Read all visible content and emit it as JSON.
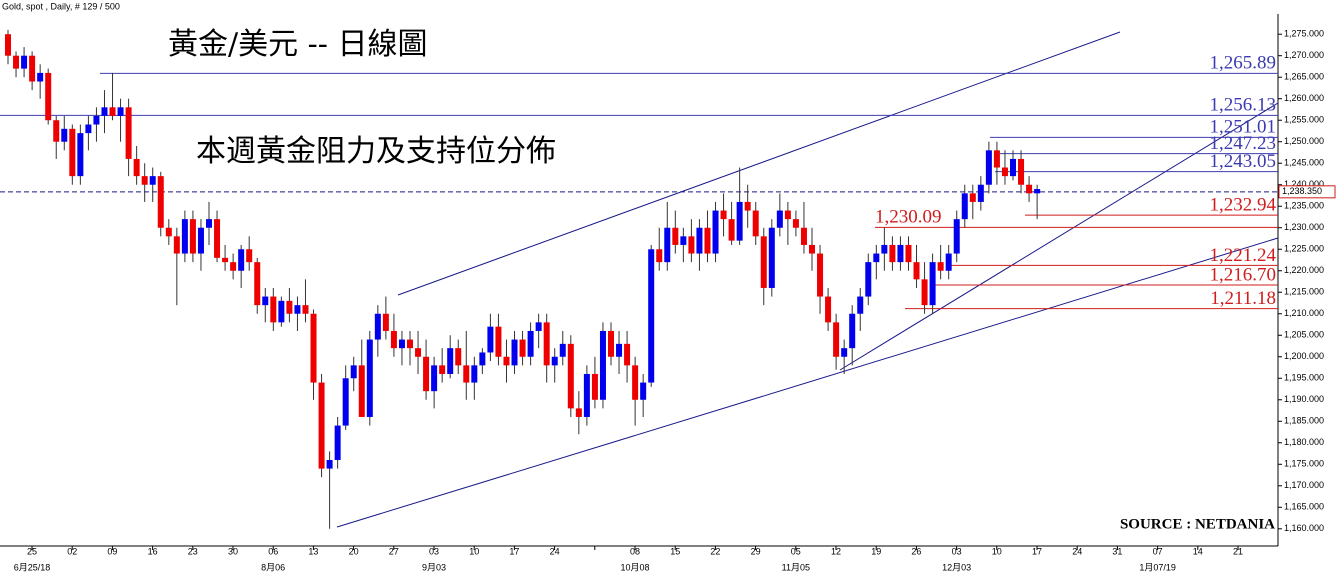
{
  "header": "Gold, spot , Daily, # 129 / 500",
  "chart_data": {
    "type": "candlestick",
    "title": "黃金/美元 -- 日線圖",
    "subtitle": "本週黃金阻力及支持位分佈",
    "source": "SOURCE : NETDANIA",
    "up_color": "#0000ee",
    "down_color": "#ee0000",
    "ohlc": [
      [
        1275,
        1276,
        1268,
        1270
      ],
      [
        1270,
        1271,
        1265,
        1267
      ],
      [
        1267,
        1272,
        1265,
        1270
      ],
      [
        1270,
        1271,
        1262,
        1264
      ],
      [
        1264,
        1268,
        1260,
        1266
      ],
      [
        1266,
        1267,
        1254,
        1255
      ],
      [
        1255,
        1256,
        1246,
        1250
      ],
      [
        1250,
        1256,
        1248,
        1253
      ],
      [
        1253,
        1254,
        1240,
        1242
      ],
      [
        1242,
        1254,
        1240,
        1252
      ],
      [
        1252,
        1256,
        1248,
        1254
      ],
      [
        1254,
        1258,
        1250,
        1256
      ],
      [
        1256,
        1262,
        1252,
        1258
      ],
      [
        1258,
        1266,
        1255,
        1256
      ],
      [
        1256,
        1260,
        1250,
        1258
      ],
      [
        1258,
        1260,
        1242,
        1246
      ],
      [
        1246,
        1249,
        1240,
        1242
      ],
      [
        1242,
        1245,
        1236,
        1240
      ],
      [
        1240,
        1244,
        1236,
        1242
      ],
      [
        1242,
        1243,
        1228,
        1230
      ],
      [
        1230,
        1232,
        1226,
        1228
      ],
      [
        1228,
        1230,
        1212,
        1224
      ],
      [
        1224,
        1234,
        1222,
        1232
      ],
      [
        1232,
        1234,
        1222,
        1224
      ],
      [
        1224,
        1232,
        1220,
        1230
      ],
      [
        1230,
        1236,
        1226,
        1232
      ],
      [
        1232,
        1234,
        1222,
        1223
      ],
      [
        1223,
        1226,
        1220,
        1222
      ],
      [
        1222,
        1224,
        1218,
        1220
      ],
      [
        1220,
        1226,
        1216,
        1225
      ],
      [
        1225,
        1228,
        1220,
        1222
      ],
      [
        1222,
        1223,
        1210,
        1212
      ],
      [
        1212,
        1216,
        1208,
        1214
      ],
      [
        1214,
        1216,
        1206,
        1208
      ],
      [
        1208,
        1214,
        1207,
        1213
      ],
      [
        1213,
        1216,
        1208,
        1210
      ],
      [
        1210,
        1214,
        1206,
        1212
      ],
      [
        1212,
        1218,
        1208,
        1210
      ],
      [
        1210,
        1211,
        1190,
        1194
      ],
      [
        1194,
        1196,
        1172,
        1174
      ],
      [
        1174,
        1178,
        1160,
        1176
      ],
      [
        1176,
        1186,
        1174,
        1184
      ],
      [
        1184,
        1198,
        1183,
        1195
      ],
      [
        1195,
        1200,
        1192,
        1198
      ],
      [
        1198,
        1204,
        1186,
        1186
      ],
      [
        1186,
        1206,
        1184,
        1204
      ],
      [
        1204,
        1212,
        1200,
        1210
      ],
      [
        1210,
        1214,
        1204,
        1206
      ],
      [
        1206,
        1210,
        1200,
        1202
      ],
      [
        1202,
        1206,
        1198,
        1204
      ],
      [
        1204,
        1206,
        1198,
        1202
      ],
      [
        1202,
        1206,
        1196,
        1200
      ],
      [
        1200,
        1204,
        1190,
        1192
      ],
      [
        1192,
        1200,
        1188,
        1198
      ],
      [
        1198,
        1202,
        1194,
        1196
      ],
      [
        1196,
        1205,
        1195,
        1202
      ],
      [
        1202,
        1204,
        1196,
        1198
      ],
      [
        1198,
        1206,
        1190,
        1194
      ],
      [
        1194,
        1200,
        1190,
        1198
      ],
      [
        1198,
        1202,
        1196,
        1201
      ],
      [
        1201,
        1210,
        1199,
        1207
      ],
      [
        1207,
        1210,
        1198,
        1200
      ],
      [
        1200,
        1204,
        1194,
        1198
      ],
      [
        1198,
        1206,
        1196,
        1204
      ],
      [
        1204,
        1206,
        1198,
        1200
      ],
      [
        1200,
        1208,
        1198,
        1206
      ],
      [
        1206,
        1210,
        1202,
        1208
      ],
      [
        1208,
        1210,
        1194,
        1198
      ],
      [
        1198,
        1202,
        1194,
        1200
      ],
      [
        1200,
        1206,
        1198,
        1203
      ],
      [
        1203,
        1205,
        1186,
        1188
      ],
      [
        1188,
        1192,
        1182,
        1186
      ],
      [
        1186,
        1198,
        1184,
        1196
      ],
      [
        1196,
        1200,
        1188,
        1190
      ],
      [
        1190,
        1208,
        1188,
        1206
      ],
      [
        1206,
        1208,
        1198,
        1200
      ],
      [
        1200,
        1206,
        1196,
        1203
      ],
      [
        1203,
        1206,
        1194,
        1198
      ],
      [
        1198,
        1200,
        1184,
        1190
      ],
      [
        1190,
        1196,
        1186,
        1194
      ],
      [
        1194,
        1226,
        1193,
        1225
      ],
      [
        1225,
        1230,
        1220,
        1222
      ],
      [
        1222,
        1236,
        1220,
        1230
      ],
      [
        1230,
        1234,
        1224,
        1226
      ],
      [
        1226,
        1230,
        1222,
        1228
      ],
      [
        1228,
        1232,
        1222,
        1224
      ],
      [
        1224,
        1232,
        1220,
        1230
      ],
      [
        1230,
        1234,
        1222,
        1224
      ],
      [
        1224,
        1236,
        1222,
        1234
      ],
      [
        1234,
        1238,
        1228,
        1232
      ],
      [
        1232,
        1236,
        1226,
        1227
      ],
      [
        1227,
        1244,
        1226,
        1236
      ],
      [
        1236,
        1240,
        1230,
        1234
      ],
      [
        1234,
        1236,
        1226,
        1228
      ],
      [
        1228,
        1230,
        1212,
        1216
      ],
      [
        1216,
        1232,
        1214,
        1230
      ],
      [
        1230,
        1238,
        1228,
        1234
      ],
      [
        1234,
        1236,
        1226,
        1232
      ],
      [
        1232,
        1234,
        1228,
        1230
      ],
      [
        1230,
        1236,
        1224,
        1226
      ],
      [
        1226,
        1230,
        1220,
        1224
      ],
      [
        1224,
        1226,
        1210,
        1214
      ],
      [
        1214,
        1216,
        1206,
        1208
      ],
      [
        1208,
        1210,
        1197,
        1200
      ],
      [
        1200,
        1204,
        1196,
        1202
      ],
      [
        1202,
        1212,
        1198,
        1210
      ],
      [
        1210,
        1216,
        1206,
        1214
      ],
      [
        1214,
        1224,
        1212,
        1222
      ],
      [
        1222,
        1226,
        1218,
        1224
      ],
      [
        1224,
        1230,
        1220,
        1226
      ],
      [
        1226,
        1228,
        1220,
        1222
      ],
      [
        1222,
        1228,
        1220,
        1226
      ],
      [
        1226,
        1228,
        1220,
        1222
      ],
      [
        1222,
        1226,
        1216,
        1218
      ],
      [
        1218,
        1222,
        1210,
        1212
      ],
      [
        1212,
        1224,
        1210,
        1222
      ],
      [
        1222,
        1226,
        1218,
        1220
      ],
      [
        1220,
        1226,
        1218,
        1224
      ],
      [
        1224,
        1234,
        1222,
        1232
      ],
      [
        1232,
        1240,
        1230,
        1238
      ],
      [
        1238,
        1240,
        1232,
        1236
      ],
      [
        1236,
        1242,
        1234,
        1240
      ],
      [
        1240,
        1250,
        1238,
        1248
      ],
      [
        1248,
        1250,
        1240,
        1244
      ],
      [
        1244,
        1248,
        1240,
        1242
      ],
      [
        1242,
        1248,
        1241,
        1246
      ],
      [
        1246,
        1248,
        1238,
        1240
      ],
      [
        1240,
        1242,
        1236,
        1238
      ],
      [
        1238,
        1240,
        1232,
        1239
      ]
    ],
    "levels": [
      {
        "value": 1265.89,
        "label": "1,265.89",
        "color": "#3b3bb0"
      },
      {
        "value": 1256.13,
        "label": "1,256.13",
        "color": "#3b3bb0"
      },
      {
        "value": 1251.01,
        "label": "1,251.01",
        "color": "#3b3bb0"
      },
      {
        "value": 1247.23,
        "label": "1,247.23",
        "color": "#3b3bb0"
      },
      {
        "value": 1243.05,
        "label": "1,243.05",
        "color": "#3b3bb0"
      },
      {
        "value": 1232.94,
        "label": "1,232.94",
        "color": "#d01c1c"
      },
      {
        "value": 1230.09,
        "label": "1,230.09",
        "color": "#d01c1c"
      },
      {
        "value": 1221.24,
        "label": "1,221.24",
        "color": "#d01c1c"
      },
      {
        "value": 1216.7,
        "label": "1,216.70",
        "color": "#d01c1c"
      },
      {
        "value": 1211.18,
        "label": "1,211.18",
        "color": "#d01c1c"
      }
    ],
    "last_price": {
      "value": 1238.35,
      "label": "1,238.350"
    },
    "categories": [
      "25",
      "02",
      "09",
      "16",
      "23",
      "30",
      "06",
      "13",
      "20",
      "27",
      "03",
      "10",
      "17",
      "24",
      null,
      "08",
      "15",
      "22",
      "29",
      "05",
      "12",
      "19",
      "26",
      "03",
      "10",
      "17",
      "24",
      "31",
      "07",
      "14",
      "21"
    ],
    "month_labels": [
      "6月25/18",
      null,
      null,
      null,
      null,
      null,
      "8月06",
      null,
      null,
      null,
      "9月03",
      null,
      null,
      null,
      null,
      "10月08",
      null,
      null,
      null,
      "11月05",
      null,
      null,
      null,
      "12月03",
      null,
      null,
      null,
      null,
      "1月07/19",
      null,
      null
    ],
    "ylim": [
      1156,
      1279
    ],
    "yticks": [
      {
        "value": 1160,
        "label": "1,160.000"
      },
      {
        "value": 1165,
        "label": "1,165.000"
      },
      {
        "value": 1170,
        "label": "1,170.000"
      },
      {
        "value": 1175,
        "label": "1,175.000"
      },
      {
        "value": 1180,
        "label": "1,180.000"
      },
      {
        "value": 1185,
        "label": "1,185.000"
      },
      {
        "value": 1190,
        "label": "1,190.000"
      },
      {
        "value": 1195,
        "label": "1,195.000"
      },
      {
        "value": 1200,
        "label": "1,200.000"
      },
      {
        "value": 1205,
        "label": "1,205.000"
      },
      {
        "value": 1210,
        "label": "1,210.000"
      },
      {
        "value": 1215,
        "label": "1,215.000"
      },
      {
        "value": 1220,
        "label": "1,220.000"
      },
      {
        "value": 1225,
        "label": "1,225.000"
      },
      {
        "value": 1230,
        "label": "1,230.000"
      },
      {
        "value": 1235,
        "label": "1,235.000"
      },
      {
        "value": 1240,
        "label": "1,240.000"
      },
      {
        "value": 1245,
        "label": "1,245.000"
      },
      {
        "value": 1250,
        "label": "1,250.000"
      },
      {
        "value": 1255,
        "label": "1,255.000"
      },
      {
        "value": 1260,
        "label": "1,260.000"
      },
      {
        "value": 1265,
        "label": "1,265.000"
      },
      {
        "value": 1270,
        "label": "1,270.000"
      },
      {
        "value": 1275,
        "label": "1,275.000"
      }
    ]
  }
}
